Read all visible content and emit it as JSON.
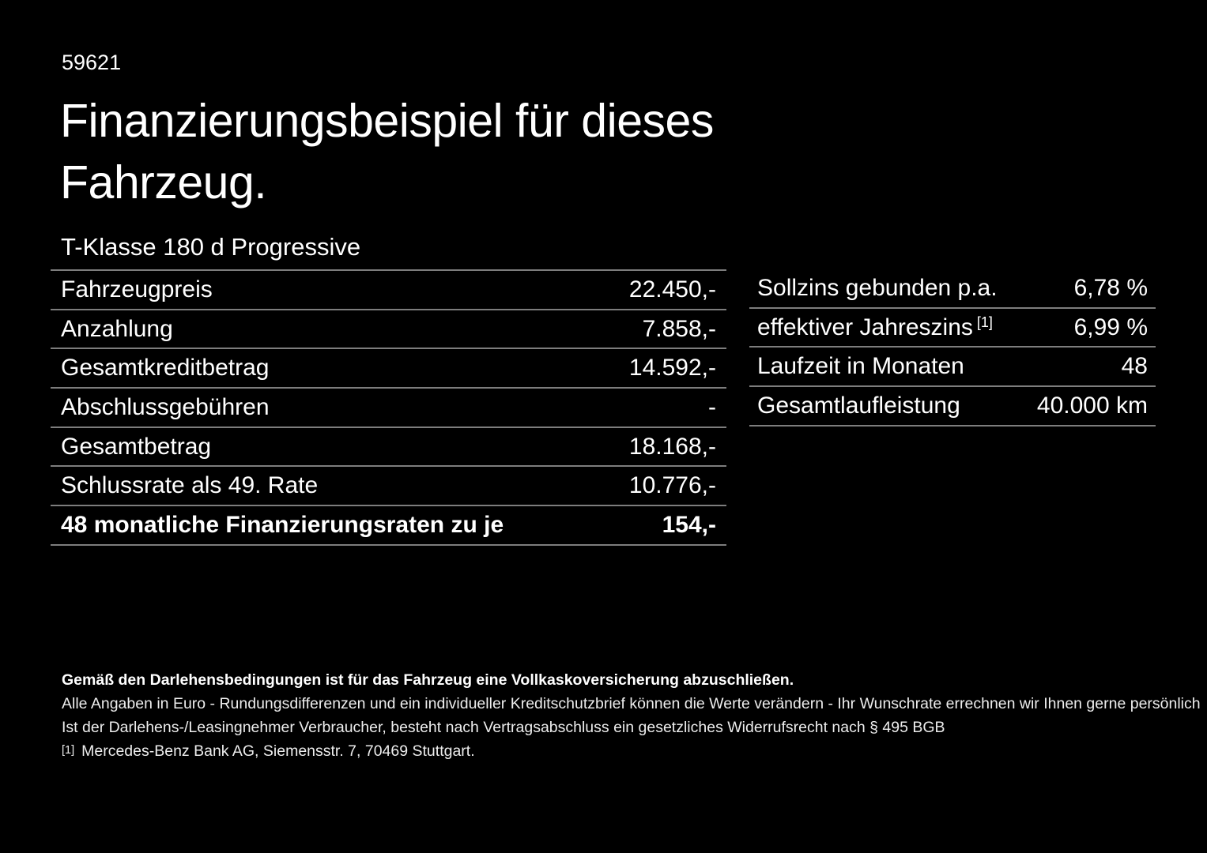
{
  "page": {
    "doc_number": "59621",
    "title_line1": "Finanzierungsbeispiel für dieses",
    "title_line2": "Fahrzeug.",
    "vehicle_name": "T-Klasse 180 d Progressive"
  },
  "left_table": {
    "rows": [
      {
        "label": "Fahrzeugpreis",
        "value": "22.450,-"
      },
      {
        "label": "Anzahlung",
        "value": "7.858,-"
      },
      {
        "label": "Gesamtkreditbetrag",
        "value": "14.592,-"
      },
      {
        "label": "Abschlussgebühren",
        "value": "-"
      },
      {
        "label": "Gesamtbetrag",
        "value": "18.168,-"
      },
      {
        "label": "Schlussrate als 49. Rate",
        "value": "10.776,-"
      },
      {
        "label": "48 monatliche Finanzierungsraten zu je",
        "value": "154,-"
      }
    ]
  },
  "right_table": {
    "rows": [
      {
        "label": "Sollzins gebunden p.a.",
        "sup": "",
        "value": "6,78 %"
      },
      {
        "label": "effektiver Jahreszins",
        "sup": "[1]",
        "value": "6,99 %"
      },
      {
        "label": "Laufzeit in Monaten",
        "sup": "",
        "value": "48"
      },
      {
        "label": "Gesamtlaufleistung",
        "sup": "",
        "value": "40.000 km"
      }
    ]
  },
  "footnotes": {
    "line1": "Gemäß den Darlehensbedingungen ist für das Fahrzeug eine Vollkaskoversicherung abzuschließen.",
    "line2": "Alle Angaben in Euro - Rundungsdifferenzen und ein individueller Kreditschutzbrief können die Werte verändern - Ihr Wunschrate errechnen wir Ihnen gerne persönlich",
    "line3": "Ist der Darlehens-/Leasingnehmer Verbraucher, besteht nach Vertragsabschluss ein gesetzliches Widerrufsrecht nach § 495 BGB",
    "line4_marker": "[1]",
    "line4_text": "Mercedes-Benz Bank AG, Siemensstr. 7, 70469 Stuttgart."
  },
  "colors": {
    "background": "#000000",
    "text": "#ffffff",
    "divider": "#7d7d7d"
  }
}
